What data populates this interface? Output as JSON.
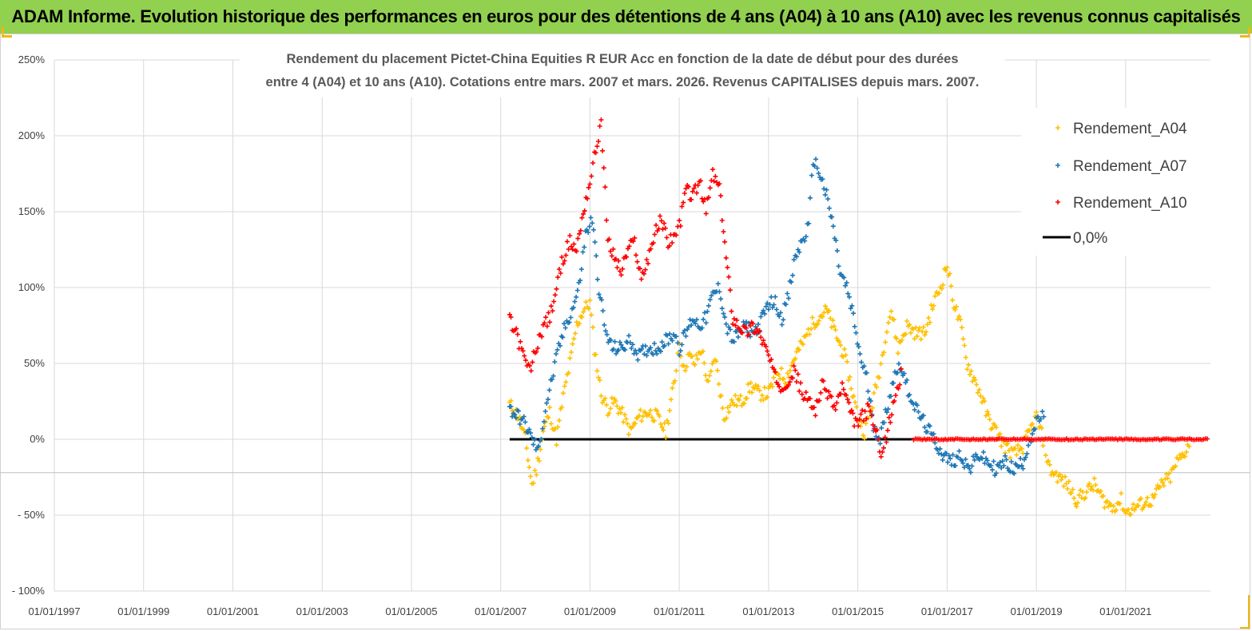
{
  "header": {
    "title": "ADAM Informe. Evolution historique des performances en euros pour des détentions de 4 ans (A04) à 10 ans (A10) avec les revenus connus capitalisés"
  },
  "colors": {
    "banner": "#92d050",
    "a04": "#ffc000",
    "a07": "#1f77b4",
    "a10": "#ff0000",
    "zero": "#000000"
  },
  "chart_data": {
    "type": "scatter",
    "title_lines": [
      "Rendement du placement Pictet-China Equities R EUR Acc en fonction de la date de début pour des durées",
      "entre 4 (A04) et 10 ans (A10). Cotations entre mars. 2007 et mars. 2026. Revenus CAPITALISES depuis mars. 2007."
    ],
    "xlabel": "",
    "ylabel": "",
    "ylim": [
      -100,
      250
    ],
    "xlim": [
      1997.0,
      2022.9
    ],
    "y_ticks": [
      250,
      200,
      150,
      100,
      50,
      0,
      -50,
      -100
    ],
    "y_tick_labels": [
      "250%",
      "200%",
      "150%",
      "100%",
      "50%",
      "0%",
      "- 50%",
      "- 100%"
    ],
    "x_ticks": [
      1997,
      1999,
      2001,
      2003,
      2005,
      2007,
      2009,
      2011,
      2013,
      2015,
      2017,
      2019,
      2021
    ],
    "x_tick_labels": [
      "01/01/1997",
      "01/01/1999",
      "01/01/2001",
      "01/01/2003",
      "01/01/2005",
      "01/01/2007",
      "01/01/2009",
      "01/01/2011",
      "01/01/2013",
      "01/01/2015",
      "01/01/2017",
      "01/01/2019",
      "01/01/2021"
    ],
    "legend_position": "right",
    "series": [
      {
        "name": "Rendement_A04",
        "color": "#ffc000",
        "x": [
          2007.2,
          2007.4,
          2007.55,
          2007.7,
          2007.8,
          2007.95,
          2008.1,
          2008.25,
          2008.4,
          2008.55,
          2008.7,
          2008.85,
          2009.0,
          2009.1,
          2009.25,
          2009.4,
          2009.55,
          2009.75,
          2009.9,
          2010.1,
          2010.3,
          2010.5,
          2010.7,
          2010.9,
          2011.0,
          2011.1,
          2011.2,
          2011.35,
          2011.5,
          2011.65,
          2011.8,
          2012.0,
          2012.2,
          2012.4,
          2012.6,
          2012.8,
          2013.0,
          2013.2,
          2013.4,
          2013.6,
          2013.8,
          2013.95,
          2014.1,
          2014.3,
          2014.5,
          2014.7,
          2014.85,
          2015.0,
          2015.15,
          2015.3,
          2015.45,
          2015.55,
          2015.65,
          2015.75,
          2015.9,
          2016.1,
          2016.3,
          2016.5,
          2016.7,
          2016.85,
          2017.0,
          2017.15,
          2017.3,
          2017.45,
          2017.6,
          2017.75,
          2017.9,
          2018.1,
          2018.3,
          2018.5,
          2018.7,
          2018.85,
          2019.0,
          2019.15,
          2019.3,
          2019.5,
          2019.7,
          2019.9,
          2020.1,
          2020.3,
          2020.5,
          2020.7,
          2020.9,
          2021.0,
          2021.2,
          2021.4,
          2021.6,
          2021.8,
          2022.0,
          2022.15,
          2022.3,
          2022.45
        ],
        "values": [
          23,
          15,
          0,
          -30,
          -20,
          5,
          18,
          0,
          28,
          50,
          75,
          85,
          90,
          60,
          30,
          20,
          25,
          15,
          5,
          15,
          18,
          15,
          5,
          40,
          65,
          45,
          55,
          50,
          60,
          35,
          55,
          15,
          25,
          25,
          35,
          30,
          30,
          45,
          40,
          55,
          65,
          75,
          80,
          85,
          70,
          55,
          35,
          15,
          5,
          20,
          40,
          55,
          75,
          85,
          60,
          75,
          70,
          70,
          90,
          100,
          115,
          90,
          75,
          50,
          40,
          30,
          15,
          5,
          -5,
          -10,
          -5,
          5,
          15,
          0,
          -20,
          -25,
          -30,
          -40,
          -35,
          -30,
          -40,
          -45,
          -40,
          -48,
          -45,
          -42,
          -40,
          -30,
          -25,
          -15,
          -10,
          0
        ]
      },
      {
        "name": "Rendement_A07",
        "color": "#1f77b4",
        "x": [
          2007.2,
          2007.4,
          2007.55,
          2007.7,
          2007.85,
          2008.0,
          2008.15,
          2008.3,
          2008.45,
          2008.6,
          2008.75,
          2008.9,
          2009.05,
          2009.2,
          2009.35,
          2009.5,
          2009.7,
          2009.9,
          2010.1,
          2010.3,
          2010.5,
          2010.7,
          2010.9,
          2011.0,
          2011.15,
          2011.3,
          2011.45,
          2011.6,
          2011.75,
          2011.9,
          2012.05,
          2012.2,
          2012.35,
          2012.5,
          2012.65,
          2012.8,
          2013.0,
          2013.15,
          2013.3,
          2013.45,
          2013.6,
          2013.75,
          2013.9,
          2014.0,
          2014.15,
          2014.3,
          2014.45,
          2014.6,
          2014.75,
          2014.9,
          2015.05,
          2015.2,
          2015.35,
          2015.5,
          2015.65,
          2015.8,
          2015.95,
          2016.1,
          2016.3,
          2016.5,
          2016.7,
          2016.9,
          2017.1,
          2017.3,
          2017.5,
          2017.7,
          2017.9,
          2018.1,
          2018.3,
          2018.5,
          2018.7,
          2018.85,
          2019.0,
          2019.1,
          2019.2
        ],
        "values": [
          20,
          15,
          10,
          0,
          -8,
          20,
          40,
          60,
          75,
          85,
          100,
          135,
          145,
          100,
          70,
          60,
          60,
          65,
          55,
          60,
          60,
          65,
          70,
          60,
          70,
          80,
          75,
          80,
          95,
          100,
          75,
          65,
          70,
          75,
          70,
          75,
          90,
          90,
          80,
          95,
          120,
          130,
          140,
          185,
          175,
          160,
          140,
          110,
          100,
          80,
          55,
          40,
          10,
          0,
          20,
          40,
          50,
          35,
          20,
          10,
          0,
          -10,
          -15,
          -10,
          -20,
          -10,
          -15,
          -20,
          -15,
          -20,
          -15,
          0,
          10,
          15,
          15
        ]
      },
      {
        "name": "Rendement_A10",
        "color": "#ff0000",
        "x": [
          2007.2,
          2007.35,
          2007.5,
          2007.65,
          2007.8,
          2007.95,
          2008.1,
          2008.25,
          2008.4,
          2008.55,
          2008.7,
          2008.85,
          2009.0,
          2009.1,
          2009.25,
          2009.4,
          2009.55,
          2009.7,
          2009.85,
          2010.0,
          2010.15,
          2010.3,
          2010.45,
          2010.6,
          2010.75,
          2010.9,
          2011.0,
          2011.15,
          2011.3,
          2011.45,
          2011.6,
          2011.75,
          2011.9,
          2012.05,
          2012.2,
          2012.35,
          2012.5,
          2012.65,
          2012.8,
          2013.0,
          2013.15,
          2013.3,
          2013.45,
          2013.6,
          2013.75,
          2013.9,
          2014.05,
          2014.2,
          2014.35,
          2014.5,
          2014.65,
          2014.8,
          2014.95,
          2015.1,
          2015.25,
          2015.4,
          2015.55,
          2015.7,
          2015.85,
          2016.0
        ],
        "values": [
          78,
          70,
          55,
          45,
          60,
          75,
          80,
          100,
          120,
          130,
          125,
          150,
          170,
          185,
          210,
          130,
          120,
          110,
          125,
          130,
          105,
          120,
          135,
          145,
          130,
          135,
          140,
          165,
          160,
          170,
          150,
          175,
          165,
          120,
          80,
          75,
          70,
          75,
          70,
          55,
          40,
          35,
          40,
          45,
          30,
          25,
          20,
          35,
          30,
          20,
          35,
          20,
          10,
          15,
          20,
          5,
          -10,
          10,
          30,
          45
        ]
      },
      {
        "name": "0,0%",
        "color": "#000000",
        "x": [
          2007.2,
          2016.25
        ],
        "values": [
          0,
          0
        ]
      }
    ],
    "zero_segment_a10": {
      "x": [
        2016.25,
        2022.85
      ],
      "values": [
        0,
        0
      ]
    }
  }
}
